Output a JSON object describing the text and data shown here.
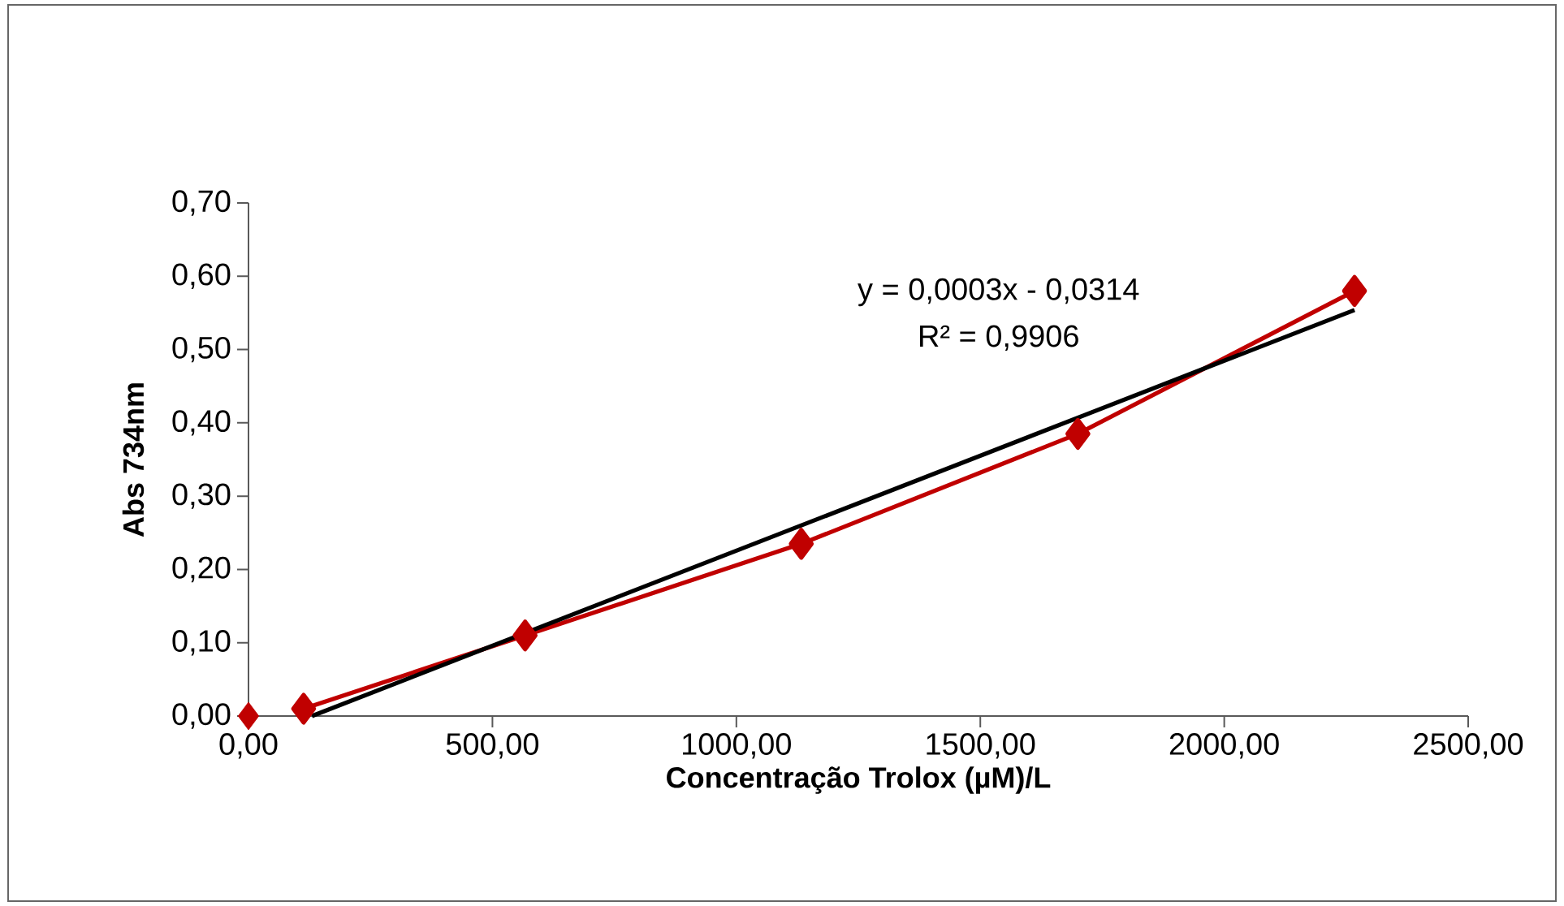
{
  "chart_data": {
    "type": "line",
    "xlabel": "Concentração Trolox (µM)/L",
    "ylabel": "Abs 734nm",
    "xlim": [
      0,
      2500
    ],
    "ylim": [
      0,
      0.7
    ],
    "xticks": [
      {
        "value": 0,
        "label": "0,00"
      },
      {
        "value": 500,
        "label": "500,00"
      },
      {
        "value": 1000,
        "label": "1000,00"
      },
      {
        "value": 1500,
        "label": "1500,00"
      },
      {
        "value": 2000,
        "label": "2000,00"
      },
      {
        "value": 2500,
        "label": "2500,00"
      }
    ],
    "yticks": [
      {
        "value": 0,
        "label": "0,00"
      },
      {
        "value": 0.1,
        "label": "0,10"
      },
      {
        "value": 0.2,
        "label": "0,20"
      },
      {
        "value": 0.3,
        "label": "0,30"
      },
      {
        "value": 0.4,
        "label": "0,40"
      },
      {
        "value": 0.5,
        "label": "0,50"
      },
      {
        "value": 0.6,
        "label": "0,60"
      },
      {
        "value": 0.7,
        "label": "0,70"
      }
    ],
    "grid": false,
    "series": [
      {
        "type": "scatter",
        "color": "#c00000",
        "marker": "diamond",
        "x": [
          0
        ],
        "values": [
          0
        ]
      },
      {
        "color": "#c00000",
        "marker": "diamond",
        "line_style": "solid",
        "x": [
          113,
          567,
          1133,
          1700,
          2267
        ],
        "values": [
          0.01,
          0.11,
          0.235,
          0.385,
          0.58
        ]
      },
      {
        "color": "#000000",
        "marker": "none",
        "line_style": "solid",
        "x": [
          130,
          2267
        ],
        "values": [
          0.0,
          0.554
        ]
      }
    ],
    "annotations": [
      "y = 0,0003x - 0,0314",
      "R² = 0,9906"
    ]
  }
}
